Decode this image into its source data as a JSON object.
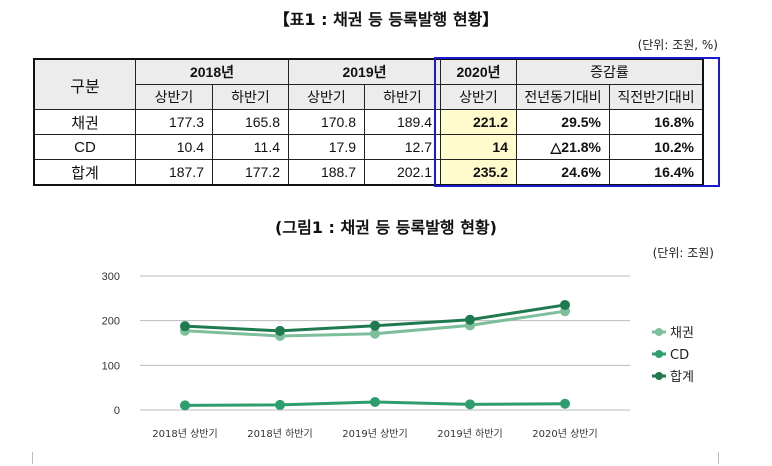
{
  "table": {
    "title": "【표1 : 채권 등 등록발행 현황】",
    "unit": "(단위: 조원, %)",
    "header": {
      "category": "구분",
      "y2018": "2018년",
      "y2019": "2019년",
      "y2020": "2020년",
      "change": "증감률",
      "h1": "상반기",
      "h2": "하반기",
      "yoy": "전년동기대비",
      "hoh": "직전반기대비"
    },
    "rows": [
      {
        "label": "채권",
        "values": [
          "177.3",
          "165.8",
          "170.8",
          "189.4",
          "221.2"
        ],
        "yoy": "29.5%",
        "hoh": "16.8%"
      },
      {
        "label": "CD",
        "values": [
          "10.4",
          "11.4",
          "17.9",
          "12.7",
          "14"
        ],
        "yoy": "△21.8%",
        "hoh": "10.2%"
      },
      {
        "label": "합계",
        "values": [
          "187.7",
          "177.2",
          "188.7",
          "202.1",
          "235.2"
        ],
        "yoy": "24.6%",
        "hoh": "16.4%"
      }
    ]
  },
  "chart_data": {
    "type": "line",
    "title": "(그림1 : 채권 등 등록발행 현황)",
    "unit": "(단위: 조원)",
    "categories": [
      "2018년 상반기",
      "2018년 하반기",
      "2019년 상반기",
      "2019년 하반기",
      "2020년 상반기"
    ],
    "ylim": [
      0,
      300
    ],
    "yticks": [
      "0",
      "100",
      "200",
      "300"
    ],
    "grid": true,
    "legend": "right",
    "series": [
      {
        "name": "채권",
        "values": [
          177.3,
          165.8,
          170.8,
          189.4,
          221.2
        ],
        "color": "#7dbf9a"
      },
      {
        "name": "CD",
        "values": [
          10.4,
          11.4,
          17.9,
          12.7,
          14
        ],
        "color": "#2e9e6e"
      },
      {
        "name": "합계",
        "values": [
          187.7,
          177.2,
          188.7,
          202.1,
          235.2
        ],
        "color": "#1f7a4f"
      }
    ]
  }
}
